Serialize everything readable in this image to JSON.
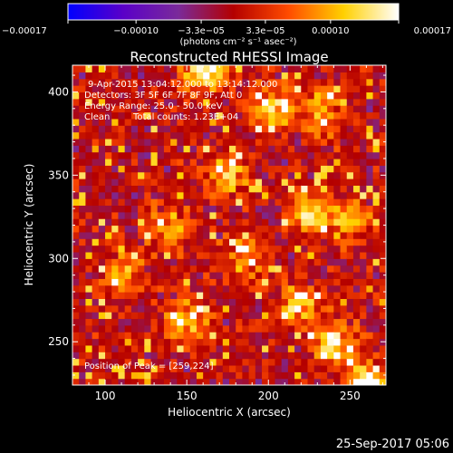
{
  "chart_data": {
    "type": "heatmap",
    "title": "Reconstructed RHESSI Image",
    "xlabel": "Heliocentric X (arcsec)",
    "ylabel": "Heliocentric Y (arcsec)",
    "xlim": [
      80,
      272
    ],
    "ylim": [
      224,
      416
    ],
    "xticks": [
      100,
      150,
      200,
      250
    ],
    "yticks": [
      250,
      300,
      350,
      400
    ],
    "colorbar": {
      "range": [
        -0.00017,
        0.00017
      ],
      "ticks": [
        -0.00017,
        -0.0001,
        -3.3e-05,
        3.3e-05,
        0.0001,
        0.00017
      ],
      "tick_labels": [
        "−0.00017",
        "−0.00010",
        "−3.3e−05",
        "3.3e−05",
        "0.00010",
        "0.00017"
      ],
      "units_label": "(photons cm⁻² s⁻¹ asec⁻²)",
      "colors": [
        "#0000ff",
        "#5a00c8",
        "#7a2a9a",
        "#b40000",
        "#ff4b00",
        "#ffd000",
        "#ffffff"
      ]
    },
    "annotations": [
      "9-Apr-2015 13:04:12.000 to 13:14:12.000",
      "Detectors: 3F 5F 6F 7F 8F 9F, Att 0",
      "Energy Range: 25.0 - 50.0 keV",
      "Clean",
      "Total counts: 1.23E+04"
    ],
    "peak_label": "Position of Peak = [259,224]",
    "peak": [
      259,
      224
    ],
    "bright_regions": [
      {
        "x": 162,
        "y": 412,
        "value": 0.00016
      },
      {
        "x": 200,
        "y": 390,
        "value": 0.00013
      },
      {
        "x": 232,
        "y": 388,
        "value": 0.00011
      },
      {
        "x": 175,
        "y": 352,
        "value": 0.00011
      },
      {
        "x": 225,
        "y": 328,
        "value": 0.00014
      },
      {
        "x": 250,
        "y": 322,
        "value": 0.0001
      },
      {
        "x": 140,
        "y": 318,
        "value": 9e-05
      },
      {
        "x": 112,
        "y": 290,
        "value": 0.0001
      },
      {
        "x": 185,
        "y": 300,
        "value": 9e-05
      },
      {
        "x": 220,
        "y": 272,
        "value": 0.00011
      },
      {
        "x": 150,
        "y": 262,
        "value": 0.0001
      },
      {
        "x": 240,
        "y": 250,
        "value": 0.00012
      },
      {
        "x": 259,
        "y": 224,
        "value": 0.00017
      }
    ],
    "grid": false
  },
  "timestamp": "25-Sep-2017 05:06"
}
